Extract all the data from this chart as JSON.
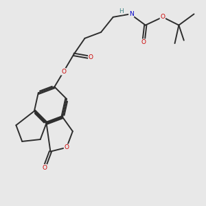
{
  "bg_color": "#e8e8e8",
  "bond_color": "#2d2d2d",
  "oxygen_color": "#cc0000",
  "nitrogen_color": "#0000cc",
  "hydrogen_color": "#448888",
  "figsize": [
    3.0,
    3.0
  ],
  "dpi": 100,
  "xlim": [
    0,
    10
  ],
  "ylim": [
    0,
    10
  ]
}
